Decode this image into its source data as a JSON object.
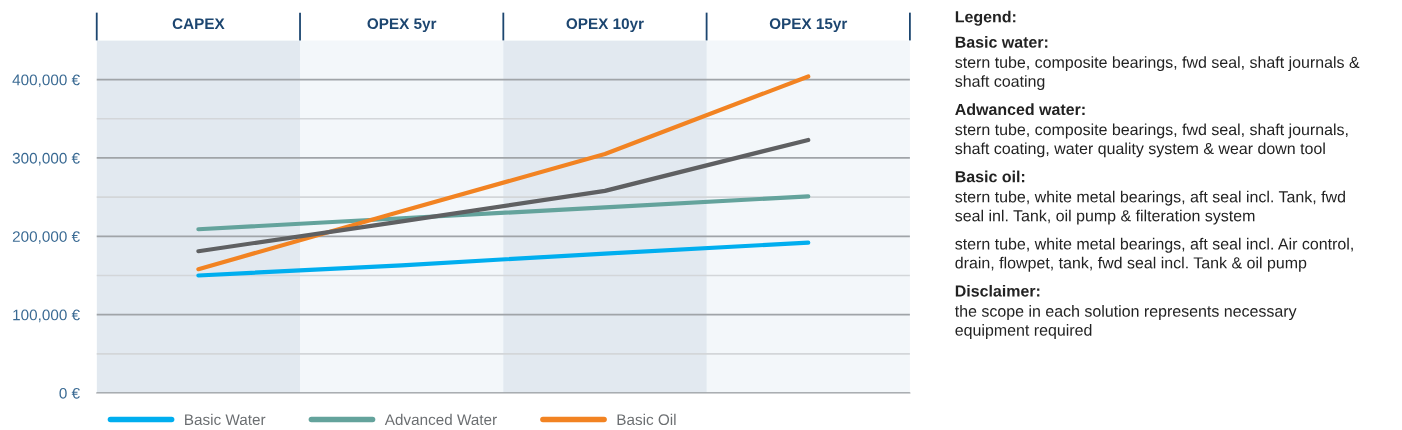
{
  "chart_data": {
    "type": "line",
    "categories": [
      "CAPEX",
      "OPEX 5yr",
      "OPEX 10yr",
      "OPEX 15yr"
    ],
    "series": [
      {
        "name": "Basic Water",
        "color": "#00aeef",
        "values": [
          150000,
          163000,
          178000,
          192000
        ]
      },
      {
        "name": "Advanced Water",
        "color": "#64a39c",
        "values": [
          209000,
          223000,
          237000,
          251000
        ]
      },
      {
        "name": "Basic Oil",
        "color": "#f28322",
        "values": [
          158000,
          232000,
          305000,
          404000
        ]
      },
      {
        "color": "#5f6062",
        "values": [
          181000,
          219000,
          258000,
          323000
        ]
      }
    ],
    "ylim": [
      0,
      450000
    ],
    "yticks": [
      {
        "value": 0,
        "label": "0 €"
      },
      {
        "value": 50000,
        "label": null
      },
      {
        "value": 100000,
        "label": "100,000 €"
      },
      {
        "value": 150000,
        "label": null
      },
      {
        "value": 200000,
        "label": "200,000 €"
      },
      {
        "value": 250000,
        "label": null
      },
      {
        "value": 300000,
        "label": "300,000 €"
      },
      {
        "value": 350000,
        "label": null
      },
      {
        "value": 400000,
        "label": "400,000 €"
      }
    ],
    "grid": "y",
    "legend": "bottom",
    "marker": "none",
    "line_style": "solid",
    "annotations": [
      "Legend:",
      "Basic water: stern tube, composite bearings, fwd seal, shaft journals & shaft coating",
      "Adwanced water: stern tube, composite bearings, fwd seal, shaft journals, shaft coating, water quality system & wear down tool",
      "Basic oil: stern tube, white metal bearings, aft seal incl. Tank, fwd seal inl. Tank, oil pump & filteration system",
      "stern tube, white metal bearings, aft seal incl. Air control, drain, flowpet, tank, fwd seal incl. Tank & oil pump",
      "Disclaimer: the scope in each solution represents necessary equipment required"
    ]
  }
}
